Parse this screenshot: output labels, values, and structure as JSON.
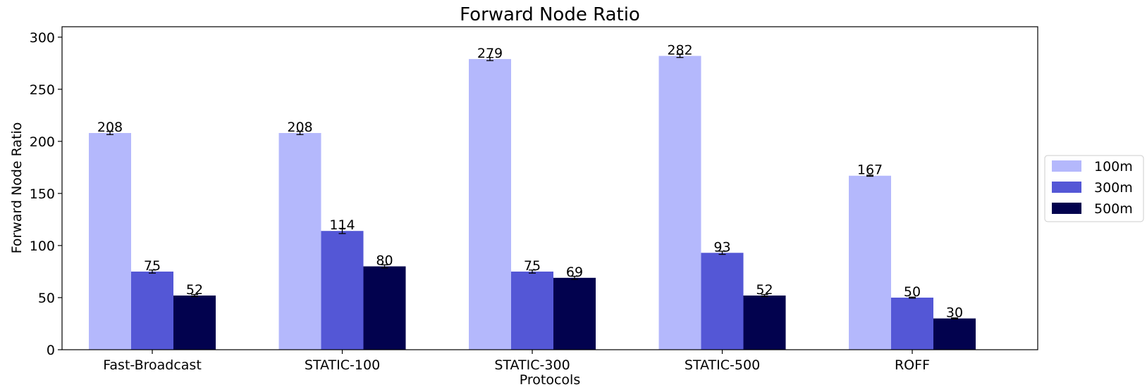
{
  "chart_data": {
    "type": "bar",
    "title": "Forward Node Ratio",
    "xlabel": "Protocols",
    "ylabel": "Forward Node Ratio",
    "categories": [
      "Fast-Broadcast",
      "STATIC-100",
      "STATIC-300",
      "STATIC-500",
      "ROFF"
    ],
    "series": [
      {
        "name": "100m",
        "color": "#b4b8fc",
        "values": [
          208,
          208,
          279,
          282,
          167
        ],
        "errors": [
          1.5,
          1.5,
          1.5,
          1.5,
          0.5
        ]
      },
      {
        "name": "300m",
        "color": "#5457d6",
        "values": [
          75,
          114,
          75,
          93,
          50
        ],
        "errors": [
          1.5,
          2.5,
          1.5,
          1.5,
          0.5
        ]
      },
      {
        "name": "500m",
        "color": "#02024e",
        "values": [
          52,
          80,
          69,
          52,
          30
        ],
        "errors": [
          1.0,
          1.5,
          1.5,
          1.0,
          0.5
        ]
      }
    ],
    "data_labels": [
      [
        "208",
        "208",
        "279",
        "282",
        "167"
      ],
      [
        "75",
        "114",
        "75",
        "93",
        "50"
      ],
      [
        "52",
        "80",
        "69",
        "52",
        "30"
      ]
    ],
    "ylim": [
      0,
      310
    ],
    "yticks": [
      0,
      50,
      100,
      150,
      200,
      250,
      300
    ],
    "ytick_labels": [
      "0",
      "50",
      "100",
      "150",
      "200",
      "250",
      "300"
    ],
    "grid": false,
    "legend_position": "outside-right"
  }
}
